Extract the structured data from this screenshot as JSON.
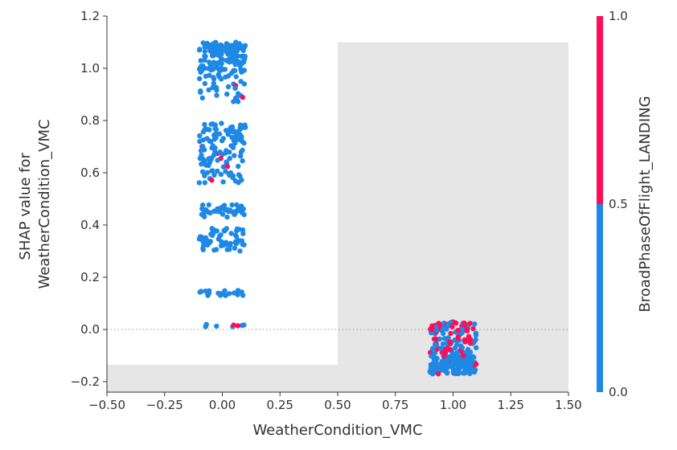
{
  "chart_data": {
    "type": "scatter",
    "subtype": "shap-dependence",
    "xlabel": "WeatherCondition_VMC",
    "ylabel_lines": [
      "SHAP value for",
      "WeatherCondition_VMC"
    ],
    "xlim": [
      -0.5,
      1.5
    ],
    "ylim": [
      -0.24,
      1.2
    ],
    "x_ticks": [
      -0.5,
      -0.25,
      0.0,
      0.25,
      0.5,
      0.75,
      1.0,
      1.25,
      1.5
    ],
    "x_tick_labels": [
      "−0.50",
      "−0.25",
      "0.00",
      "0.25",
      "0.50",
      "0.75",
      "1.00",
      "1.25",
      "1.50"
    ],
    "y_ticks": [
      -0.2,
      0.0,
      0.2,
      0.4,
      0.6,
      0.8,
      1.0,
      1.2
    ],
    "y_tick_labels": [
      "−0.2",
      "0.0",
      "0.2",
      "0.4",
      "0.6",
      "0.8",
      "1.0",
      "1.2"
    ],
    "zero_line": 0.0,
    "grid": false,
    "background_histogram": [
      {
        "x_range": [
          -0.5,
          0.5
        ],
        "height": -0.135
      },
      {
        "x_range": [
          0.5,
          1.5
        ],
        "height": 1.1
      }
    ],
    "colorbar": {
      "label": "BroadPhaseOfFlight_LANDING",
      "ticks": [
        0.0,
        0.5,
        1.0
      ],
      "tick_labels": [
        "0.0",
        "0.5",
        "1.0"
      ],
      "low_color": "#1E88E5",
      "high_color": "#FF0D57"
    },
    "series": [
      {
        "x_value": 0,
        "jitter": 0.1,
        "bands": [
          {
            "y_range": [
              1.06,
              1.1
            ],
            "count": 70,
            "landing_share": 0
          },
          {
            "y_range": [
              0.99,
              1.06
            ],
            "count": 75,
            "landing_share": 0.03
          },
          {
            "y_range": [
              0.87,
              0.99
            ],
            "count": 40,
            "landing_share": 0.04
          },
          {
            "y_range": [
              0.72,
              0.79
            ],
            "count": 50,
            "landing_share": 0.06
          },
          {
            "y_range": [
              0.56,
              0.72
            ],
            "count": 70,
            "landing_share": 0.03
          },
          {
            "y_range": [
              0.43,
              0.48
            ],
            "count": 40,
            "landing_share": 0
          },
          {
            "y_range": [
              0.3,
              0.39
            ],
            "count": 60,
            "landing_share": 0
          },
          {
            "y_range": [
              0.13,
              0.15
            ],
            "count": 25,
            "landing_share": 0
          },
          {
            "y_range": [
              0.01,
              0.02
            ],
            "count": 8,
            "landing_share": 0.6
          }
        ]
      },
      {
        "x_value": 1,
        "jitter": 0.1,
        "bands": [
          {
            "y_range": [
              -0.09,
              0.03
            ],
            "count": 120,
            "landing_share": 0.45
          },
          {
            "y_range": [
              -0.17,
              -0.1
            ],
            "count": 170,
            "landing_share": 0.08
          }
        ]
      }
    ]
  }
}
